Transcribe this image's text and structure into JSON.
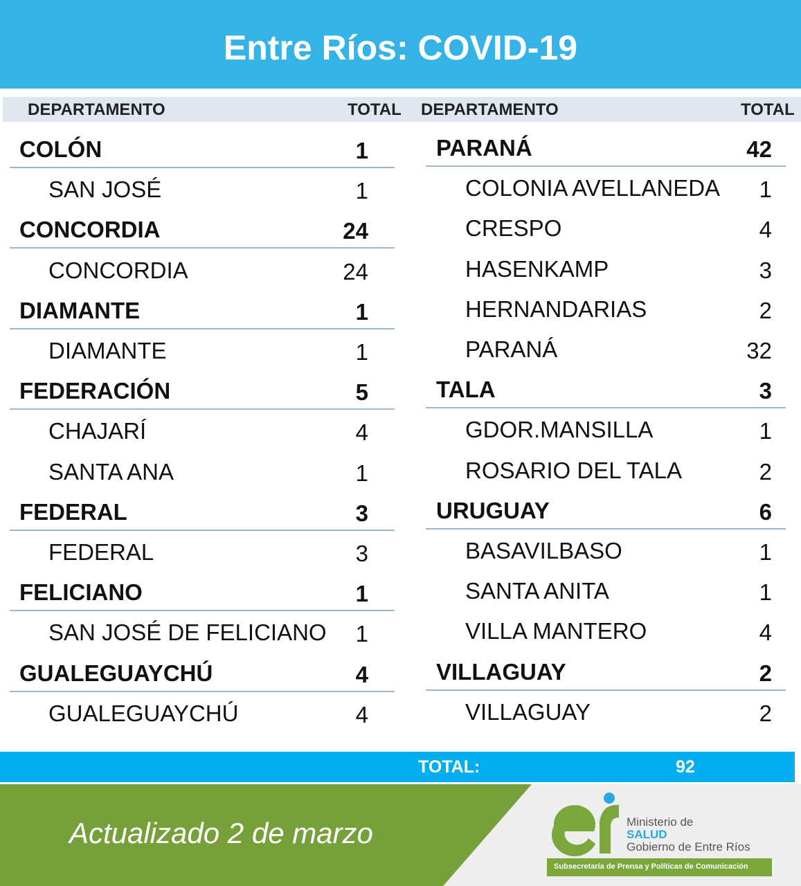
{
  "header": {
    "title": "Entre Ríos: COVID-19"
  },
  "columns": [
    {
      "department_heading": "DEPARTAMENTO",
      "total_heading": "TOTAL",
      "departments": [
        {
          "name": "COLÓN",
          "total": 1,
          "localities": [
            {
              "name": "SAN JOSÉ",
              "total": 1
            }
          ]
        },
        {
          "name": "CONCORDIA",
          "total": 24,
          "localities": [
            {
              "name": "CONCORDIA",
              "total": 24
            }
          ]
        },
        {
          "name": "DIAMANTE",
          "total": 1,
          "localities": [
            {
              "name": "DIAMANTE",
              "total": 1
            }
          ]
        },
        {
          "name": "FEDERACIÓN",
          "total": 5,
          "localities": [
            {
              "name": "CHAJARÍ",
              "total": 4
            },
            {
              "name": "SANTA ANA",
              "total": 1
            }
          ]
        },
        {
          "name": "FEDERAL",
          "total": 3,
          "localities": [
            {
              "name": "FEDERAL",
              "total": 3
            }
          ]
        },
        {
          "name": "FELICIANO",
          "total": 1,
          "localities": [
            {
              "name": "SAN JOSÉ DE FELICIANO",
              "total": 1
            }
          ]
        },
        {
          "name": "GUALEGUAYCHÚ",
          "total": 4,
          "localities": [
            {
              "name": "GUALEGUAYCHÚ",
              "total": 4
            }
          ]
        }
      ]
    },
    {
      "department_heading": "DEPARTAMENTO",
      "total_heading": "TOTAL",
      "departments": [
        {
          "name": "PARANÁ",
          "total": 42,
          "localities": [
            {
              "name": "COLONIA AVELLANEDA",
              "total": 1
            },
            {
              "name": "CRESPO",
              "total": 4
            },
            {
              "name": "HASENKAMP",
              "total": 3
            },
            {
              "name": "HERNANDARIAS",
              "total": 2
            },
            {
              "name": "PARANÁ",
              "total": 32
            }
          ]
        },
        {
          "name": "TALA",
          "total": 3,
          "localities": [
            {
              "name": "GDOR.MANSILLA",
              "total": 1
            },
            {
              "name": "ROSARIO DEL TALA",
              "total": 2
            }
          ]
        },
        {
          "name": "URUGUAY",
          "total": 6,
          "localities": [
            {
              "name": "BASAVILBASO",
              "total": 1
            },
            {
              "name": "SANTA ANITA",
              "total": 1
            },
            {
              "name": "VILLA MANTERO",
              "total": 4
            }
          ]
        },
        {
          "name": "VILLAGUAY",
          "total": 2,
          "localities": [
            {
              "name": "VILLAGUAY",
              "total": 2
            }
          ]
        }
      ]
    }
  ],
  "footer": {
    "total_label": "TOTAL:",
    "total_value": 92,
    "updated": "Actualizado 2 de marzo",
    "logo": {
      "line1": "Ministerio de",
      "line2": "SALUD",
      "line3": "Gobierno de Entre Ríos",
      "banner": "Subsecretaría de Prensa y Políticas de Comunicación"
    }
  }
}
